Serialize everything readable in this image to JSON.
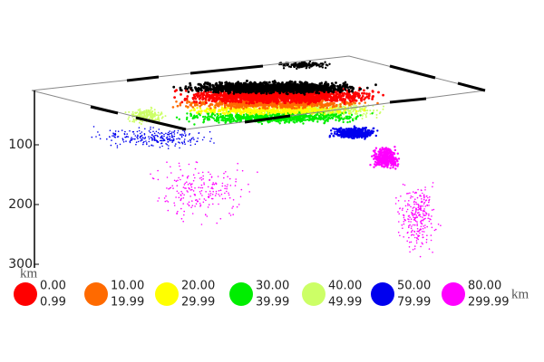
{
  "chart_data": {
    "type": "scatter",
    "ylim": [
      0,
      300
    ],
    "yticks": [
      100,
      200,
      300
    ],
    "y_unit": "km",
    "x_unit": "km",
    "legend": [
      {
        "from": "0.00",
        "to": "0.99",
        "color": "#ff0000"
      },
      {
        "from": "10.00",
        "to": "19.99",
        "color": "#ff6a00"
      },
      {
        "from": "20.00",
        "to": "29.99",
        "color": "#ffff00"
      },
      {
        "from": "30.00",
        "to": "39.99",
        "color": "#00ee00"
      },
      {
        "from": "40.00",
        "to": "49.99",
        "color": "#ccff66"
      },
      {
        "from": "50.00",
        "to": "79.99",
        "color": "#0000ee"
      },
      {
        "from": "80.00",
        "to": "299.99",
        "color": "#ff00ff"
      }
    ]
  }
}
